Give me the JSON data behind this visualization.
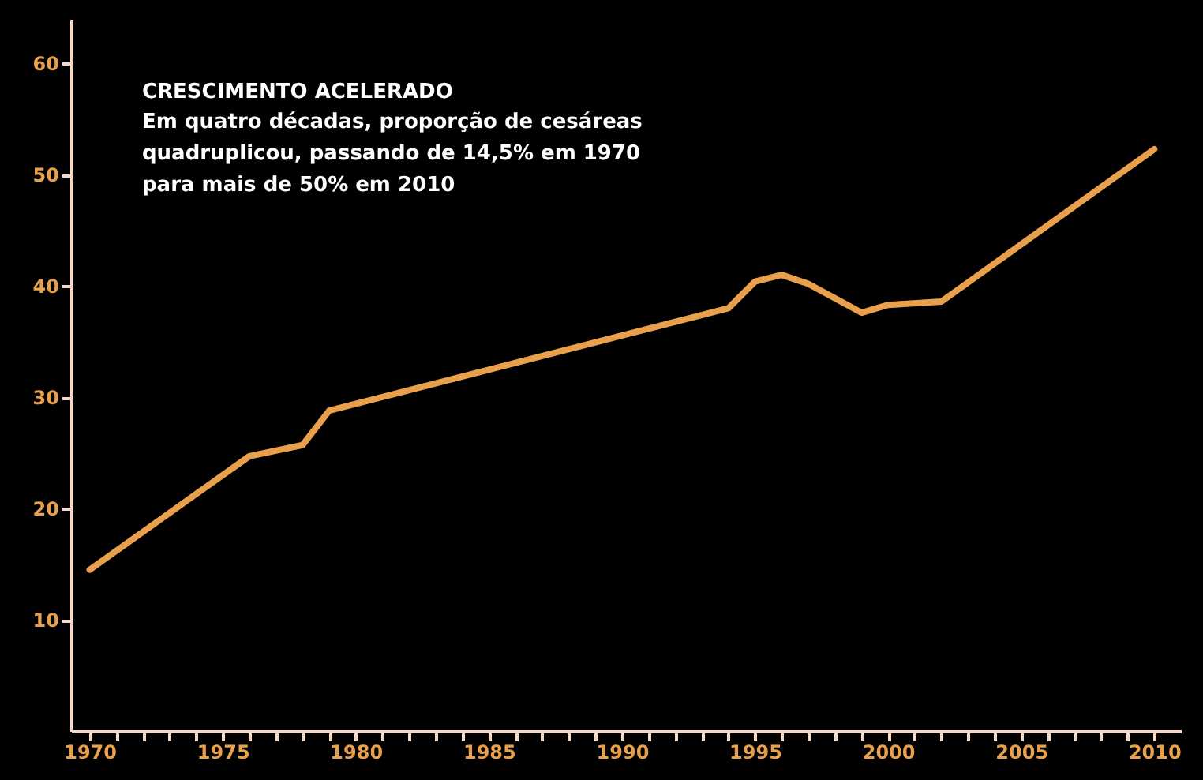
{
  "chart_data": {
    "type": "line",
    "title": "CRESCIMENTO ACELERADO",
    "subtitle": "Em quatro décadas, proporção de cesáreas\nquadruplicou, passando de  14,5% em 1970\npara mais de 50% em 2010",
    "x": [
      1970,
      1976,
      1978,
      1979,
      1994,
      1995,
      1996,
      1997,
      1999,
      2000,
      2002,
      2010
    ],
    "series": [
      {
        "color": "#e8a04c",
        "values": [
          14.5,
          24.7,
          25.7,
          28.8,
          38,
          40.4,
          41,
          40.2,
          37.6,
          38.3,
          38.6,
          52.3
        ]
      }
    ],
    "xlim": [
      1969.3,
      2011
    ],
    "ylim": [
      0,
      64
    ],
    "xticks": [
      1970,
      {
        "value": 1971,
        "label": null
      },
      {
        "value": 1972,
        "label": null
      },
      {
        "value": 1973,
        "label": null
      },
      {
        "value": 1974,
        "label": null
      },
      1975,
      {
        "value": 1976,
        "label": null
      },
      {
        "value": 1977,
        "label": null
      },
      {
        "value": 1978,
        "label": null
      },
      {
        "value": 1979,
        "label": null
      },
      1980,
      {
        "value": 1981,
        "label": null
      },
      {
        "value": 1982,
        "label": null
      },
      {
        "value": 1983,
        "label": null
      },
      {
        "value": 1984,
        "label": null
      },
      1985,
      {
        "value": 1986,
        "label": null
      },
      {
        "value": 1987,
        "label": null
      },
      {
        "value": 1988,
        "label": null
      },
      {
        "value": 1989,
        "label": null
      },
      1990,
      {
        "value": 1991,
        "label": null
      },
      {
        "value": 1992,
        "label": null
      },
      {
        "value": 1993,
        "label": null
      },
      {
        "value": 1994,
        "label": null
      },
      1995,
      {
        "value": 1996,
        "label": null
      },
      {
        "value": 1997,
        "label": null
      },
      {
        "value": 1998,
        "label": null
      },
      {
        "value": 1999,
        "label": null
      },
      2000,
      {
        "value": 2001,
        "label": null
      },
      {
        "value": 2002,
        "label": null
      },
      {
        "value": 2003,
        "label": null
      },
      {
        "value": 2004,
        "label": null
      },
      2005,
      {
        "value": 2006,
        "label": null
      },
      {
        "value": 2007,
        "label": null
      },
      {
        "value": 2008,
        "label": null
      },
      {
        "value": 2009,
        "label": null
      },
      2010
    ],
    "yticks": [
      10,
      20,
      30,
      40,
      50,
      60
    ],
    "grid": false,
    "legend": false,
    "marker": "none",
    "line_style": "solid"
  }
}
